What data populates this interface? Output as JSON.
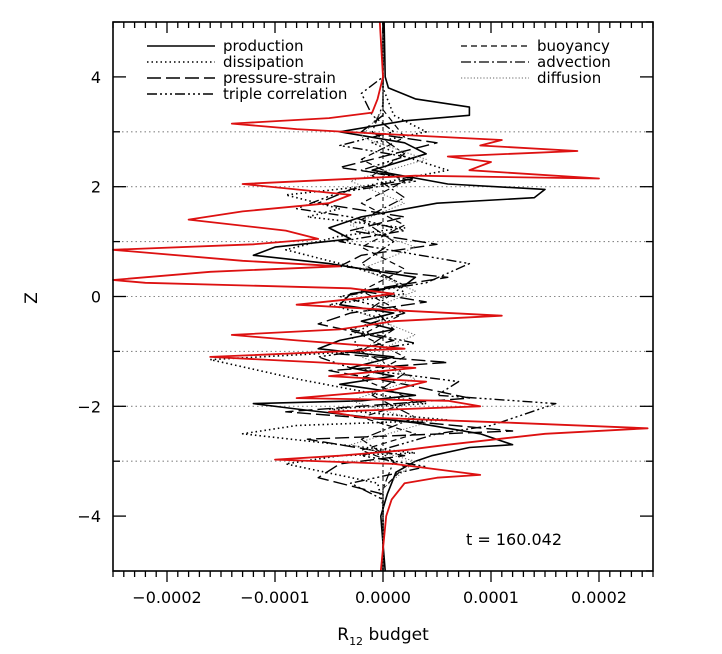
{
  "chart_data": {
    "type": "line",
    "title": "",
    "xlabel_main": "R",
    "xlabel_sub": "12",
    "xlabel_rest": " budget",
    "ylabel": "Z",
    "annotation": "t = 160.042",
    "xlim": [
      -0.00025,
      0.00025
    ],
    "ylim": [
      -5,
      5
    ],
    "x_ticks": [
      {
        "value": -0.0002,
        "label": "−0.0002"
      },
      {
        "value": -0.0001,
        "label": "−0.0001"
      },
      {
        "value": 0.0,
        "label": "0.0000"
      },
      {
        "value": 0.0001,
        "label": "0.0001"
      },
      {
        "value": 0.0002,
        "label": "0.0002"
      }
    ],
    "y_ticks": [
      {
        "value": -4,
        "label": "−4"
      },
      {
        "value": -2,
        "label": "−2"
      },
      {
        "value": 0,
        "label": "0"
      },
      {
        "value": 2,
        "label": "2"
      },
      {
        "value": 4,
        "label": "4"
      }
    ],
    "reference_lines_y": [
      -3,
      -2,
      -1,
      0,
      1,
      2,
      3
    ],
    "reference_line_x": 0.0,
    "legend_position": "top",
    "series": [
      {
        "name": "production",
        "color": "#000000",
        "dash": "none",
        "width": 1.6,
        "points": [
          [
            2e-06,
            -5.0
          ],
          [
            -2e-06,
            -4.0
          ],
          [
            4e-06,
            -3.6
          ],
          [
            1.2e-05,
            -3.2
          ],
          [
            3e-05,
            -3.0
          ],
          [
            4.5e-05,
            -2.9
          ],
          [
            8e-05,
            -2.75
          ],
          [
            0.00012,
            -2.7
          ],
          [
            9e-05,
            -2.5
          ],
          [
            3e-05,
            -2.3
          ],
          [
            -8e-05,
            -2.05
          ],
          [
            -0.00012,
            -1.95
          ],
          [
            -2e-05,
            -1.9
          ],
          [
            3e-05,
            -1.8
          ],
          [
            -4e-05,
            -1.6
          ],
          [
            1e-05,
            -1.45
          ],
          [
            -3e-05,
            -1.3
          ],
          [
            1e-05,
            -1.1
          ],
          [
            -6e-05,
            -0.95
          ],
          [
            -4e-05,
            -0.8
          ],
          [
            1e-05,
            -0.6
          ],
          [
            -2e-05,
            -0.45
          ],
          [
            1e-05,
            -0.3
          ],
          [
            -4e-05,
            -0.15
          ],
          [
            -3e-05,
            0.05
          ],
          [
            2e-05,
            0.2
          ],
          [
            3e-05,
            0.35
          ],
          [
            -5e-05,
            0.6
          ],
          [
            -0.00012,
            0.75
          ],
          [
            -0.0001,
            0.9
          ],
          [
            -3e-05,
            1.05
          ],
          [
            -5e-05,
            1.25
          ],
          [
            -2e-05,
            1.45
          ],
          [
            5e-05,
            1.7
          ],
          [
            0.00014,
            1.8
          ],
          [
            0.00015,
            1.95
          ],
          [
            6e-05,
            2.05
          ],
          [
            -1e-05,
            2.3
          ],
          [
            4e-05,
            2.6
          ],
          [
            2e-05,
            2.8
          ],
          [
            -4e-05,
            3.0
          ],
          [
            2e-05,
            3.2
          ],
          [
            8e-05,
            3.3
          ],
          [
            8e-05,
            3.45
          ],
          [
            3e-05,
            3.6
          ],
          [
            5e-06,
            3.8
          ],
          [
            2e-06,
            4.0
          ],
          [
            1e-06,
            5.0
          ]
        ]
      },
      {
        "name": "dissipation",
        "color": "#000000",
        "dash": "1.5 3",
        "width": 1.6,
        "points": [
          [
            0.0,
            -5.0
          ],
          [
            0.0,
            -3.8
          ],
          [
            -5e-06,
            -3.4
          ],
          [
            -9e-05,
            -3.05
          ],
          [
            -4e-05,
            -2.9
          ],
          [
            3e-05,
            -2.85
          ],
          [
            -0.00013,
            -2.5
          ],
          [
            -8e-05,
            -2.35
          ],
          [
            6e-05,
            -2.25
          ],
          [
            -5e-05,
            -2.05
          ],
          [
            4e-05,
            -1.95
          ],
          [
            -8e-05,
            -1.5
          ],
          [
            -0.00016,
            -1.15
          ],
          [
            -2e-05,
            -1.0
          ],
          [
            -3e-05,
            -0.7
          ],
          [
            0.0,
            -0.4
          ],
          [
            -5e-05,
            -0.15
          ],
          [
            2e-05,
            0.05
          ],
          [
            1e-05,
            0.3
          ],
          [
            -3e-05,
            0.55
          ],
          [
            -9e-05,
            0.85
          ],
          [
            -4e-05,
            1.1
          ],
          [
            2e-05,
            1.25
          ],
          [
            -7e-05,
            1.45
          ],
          [
            -4e-05,
            1.6
          ],
          [
            -9e-05,
            1.85
          ],
          [
            -2e-05,
            2.0
          ],
          [
            6e-05,
            2.3
          ],
          [
            2e-05,
            2.55
          ],
          [
            -1e-05,
            2.8
          ],
          [
            4e-05,
            3.0
          ],
          [
            1e-05,
            3.3
          ],
          [
            0.0,
            3.8
          ],
          [
            0.0,
            5.0
          ]
        ]
      },
      {
        "name": "pressure-strain",
        "color": "#000000",
        "dash": "14 5",
        "width": 1.4,
        "points": [
          [
            0.0,
            -5.0
          ],
          [
            0.0,
            -3.6
          ],
          [
            -6e-05,
            -3.3
          ],
          [
            -4e-05,
            -3.05
          ],
          [
            2e-05,
            -2.9
          ],
          [
            -7e-05,
            -2.6
          ],
          [
            0.00012,
            -2.45
          ],
          [
            4e-05,
            -2.3
          ],
          [
            -9e-05,
            -2.1
          ],
          [
            8e-05,
            -1.85
          ],
          [
            2e-05,
            -1.6
          ],
          [
            -5e-05,
            -1.35
          ],
          [
            6e-05,
            -1.2
          ],
          [
            -4e-05,
            -1.05
          ],
          [
            1e-05,
            -0.8
          ],
          [
            -6e-05,
            -0.5
          ],
          [
            -3e-05,
            -0.3
          ],
          [
            4e-05,
            -0.1
          ],
          [
            -2e-05,
            0.1
          ],
          [
            6e-05,
            0.35
          ],
          [
            -4e-05,
            0.55
          ],
          [
            -2e-05,
            0.75
          ],
          [
            5e-05,
            0.95
          ],
          [
            -3e-05,
            1.2
          ],
          [
            2e-05,
            1.45
          ],
          [
            -6e-05,
            1.7
          ],
          [
            -3e-05,
            1.95
          ],
          [
            3e-05,
            2.15
          ],
          [
            -4e-05,
            2.35
          ],
          [
            1e-05,
            2.6
          ],
          [
            5e-05,
            2.8
          ],
          [
            -2e-05,
            3.0
          ],
          [
            0.0,
            3.3
          ],
          [
            0.0,
            5.0
          ]
        ]
      },
      {
        "name": "triple correlation",
        "color": "#000000",
        "dash": "10 3 2 3 2 3 2 3",
        "width": 1.4,
        "points": [
          [
            0.0,
            -5.0
          ],
          [
            0.0,
            -3.7
          ],
          [
            -3e-05,
            -3.4
          ],
          [
            4e-05,
            -3.1
          ],
          [
            -2e-05,
            -2.9
          ],
          [
            5e-05,
            -2.5
          ],
          [
            0.0001,
            -2.35
          ],
          [
            0.00016,
            -1.95
          ],
          [
            5e-05,
            -1.8
          ],
          [
            7e-05,
            -1.55
          ],
          [
            -3e-05,
            -1.3
          ],
          [
            -6e-05,
            -1.1
          ],
          [
            3e-05,
            -0.85
          ],
          [
            -3e-05,
            -0.6
          ],
          [
            2e-05,
            -0.3
          ],
          [
            -4e-05,
            0.0
          ],
          [
            4e-05,
            0.25
          ],
          [
            8e-05,
            0.6
          ],
          [
            2e-05,
            0.8
          ],
          [
            -4e-05,
            1.0
          ],
          [
            2e-05,
            1.2
          ],
          [
            -3e-05,
            1.45
          ],
          [
            -8e-05,
            1.6
          ],
          [
            -4e-05,
            1.9
          ],
          [
            3e-05,
            2.1
          ],
          [
            -2e-05,
            2.3
          ],
          [
            2e-05,
            2.55
          ],
          [
            -4e-05,
            2.75
          ],
          [
            1e-05,
            3.0
          ],
          [
            -1e-05,
            3.3
          ],
          [
            -2e-05,
            3.7
          ],
          [
            0.0,
            4.0
          ],
          [
            0.0,
            5.0
          ]
        ]
      },
      {
        "name": "buoyancy",
        "color": "#000000",
        "dash": "6 4",
        "width": 1.2,
        "points": [
          [
            0.0,
            -5.0
          ],
          [
            0.0,
            -3.5
          ],
          [
            2e-05,
            -3.1
          ],
          [
            -2e-05,
            -2.8
          ],
          [
            3e-05,
            -2.5
          ],
          [
            -2e-05,
            -2.2
          ],
          [
            3e-05,
            -1.9
          ],
          [
            -2e-05,
            -1.5
          ],
          [
            2e-05,
            -1.1
          ],
          [
            -2e-05,
            -0.7
          ],
          [
            2e-05,
            -0.3
          ],
          [
            -2e-05,
            0.1
          ],
          [
            2e-05,
            0.5
          ],
          [
            -2e-05,
            0.9
          ],
          [
            2e-05,
            1.3
          ],
          [
            -2e-05,
            1.7
          ],
          [
            2e-05,
            2.1
          ],
          [
            -2e-05,
            2.5
          ],
          [
            2e-05,
            2.9
          ],
          [
            0.0,
            3.4
          ],
          [
            0.0,
            5.0
          ]
        ]
      },
      {
        "name": "advection",
        "color": "#000000",
        "dash": "10 3 2 3",
        "width": 1.2,
        "points": [
          [
            0.0,
            -5.0
          ],
          [
            0.0,
            -3.5
          ],
          [
            1e-05,
            -3.0
          ],
          [
            -2e-05,
            -2.6
          ],
          [
            3e-05,
            -2.2
          ],
          [
            -1e-05,
            -1.8
          ],
          [
            2e-05,
            -1.4
          ],
          [
            -2e-05,
            -1.0
          ],
          [
            1e-05,
            -0.6
          ],
          [
            -1e-05,
            -0.2
          ],
          [
            2e-05,
            0.2
          ],
          [
            -2e-05,
            0.6
          ],
          [
            1e-05,
            1.0
          ],
          [
            -2e-05,
            1.4
          ],
          [
            2e-05,
            1.8
          ],
          [
            -1e-05,
            2.2
          ],
          [
            2e-05,
            2.6
          ],
          [
            -1e-05,
            3.0
          ],
          [
            0.0,
            3.5
          ],
          [
            0.0,
            5.0
          ]
        ]
      },
      {
        "name": "diffusion",
        "color": "#666666",
        "dash": "1.2 2",
        "width": 1.0,
        "points": [
          [
            0.0,
            -5.0
          ],
          [
            0.0,
            -3.5
          ],
          [
            3e-05,
            -3.0
          ],
          [
            -3e-05,
            -2.7
          ],
          [
            4e-05,
            -2.3
          ],
          [
            -3e-05,
            -1.9
          ],
          [
            3e-05,
            -1.5
          ],
          [
            -2e-05,
            -1.1
          ],
          [
            3e-05,
            -0.7
          ],
          [
            -2e-05,
            -0.3
          ],
          [
            3e-05,
            0.1
          ],
          [
            -2e-05,
            0.5
          ],
          [
            3e-05,
            0.9
          ],
          [
            -3e-05,
            1.3
          ],
          [
            2e-05,
            1.7
          ],
          [
            -3e-05,
            2.1
          ],
          [
            4e-05,
            2.5
          ],
          [
            -2e-05,
            2.9
          ],
          [
            0.0,
            3.4
          ],
          [
            0.0,
            5.0
          ]
        ]
      },
      {
        "name": "",
        "color": "#dd1111",
        "dash": "none",
        "width": 1.8,
        "points": [
          [
            -2e-06,
            -5.0
          ],
          [
            3e-06,
            -4.0
          ],
          [
            8e-06,
            -3.7
          ],
          [
            2e-05,
            -3.4
          ],
          [
            5e-05,
            -3.3
          ],
          [
            9e-05,
            -3.25
          ],
          [
            5e-05,
            -3.15
          ],
          [
            1e-05,
            -3.05
          ],
          [
            -0.0001,
            -2.97
          ],
          [
            -4e-05,
            -2.9
          ],
          [
            2e-05,
            -2.8
          ],
          [
            6e-05,
            -2.7
          ],
          [
            0.00015,
            -2.5
          ],
          [
            0.000245,
            -2.4
          ],
          [
            0.00012,
            -2.3
          ],
          [
            -2e-05,
            -2.2
          ],
          [
            -5e-05,
            -2.1
          ],
          [
            9e-05,
            -2.0
          ],
          [
            6e-05,
            -1.9
          ],
          [
            -8e-05,
            -1.85
          ],
          [
            1e-05,
            -1.7
          ],
          [
            4e-05,
            -1.55
          ],
          [
            -5e-05,
            -1.45
          ],
          [
            3e-05,
            -1.3
          ],
          [
            -6e-05,
            -1.2
          ],
          [
            -0.00016,
            -1.1
          ],
          [
            -4e-05,
            -1.0
          ],
          [
            2e-05,
            -0.95
          ],
          [
            -8e-05,
            -0.8
          ],
          [
            -0.00014,
            -0.7
          ],
          [
            -4e-05,
            -0.6
          ],
          [
            1e-05,
            -0.45
          ],
          [
            0.00011,
            -0.35
          ],
          [
            1e-05,
            -0.25
          ],
          [
            -8e-05,
            -0.15
          ],
          [
            -3e-05,
            -0.05
          ],
          [
            1e-05,
            0.05
          ],
          [
            -3e-05,
            0.15
          ],
          [
            -0.00022,
            0.25
          ],
          [
            -0.00025,
            0.3
          ],
          [
            -0.00016,
            0.45
          ],
          [
            -4e-05,
            0.55
          ],
          [
            -0.00013,
            0.65
          ],
          [
            -0.00025,
            0.85
          ],
          [
            -0.00012,
            0.95
          ],
          [
            -6e-05,
            1.05
          ],
          [
            -9e-05,
            1.2
          ],
          [
            -0.00018,
            1.4
          ],
          [
            -0.00013,
            1.55
          ],
          [
            -5e-05,
            1.7
          ],
          [
            -3e-05,
            1.85
          ],
          [
            -0.00013,
            2.05
          ],
          [
            3e-05,
            2.2
          ],
          [
            0.0002,
            2.15
          ],
          [
            8e-05,
            2.3
          ],
          [
            0.0001,
            2.45
          ],
          [
            6e-05,
            2.55
          ],
          [
            0.00018,
            2.65
          ],
          [
            9e-05,
            2.75
          ],
          [
            0.00011,
            2.85
          ],
          [
            1e-05,
            2.95
          ],
          [
            -8e-05,
            3.05
          ],
          [
            -0.00014,
            3.15
          ],
          [
            -5e-05,
            3.25
          ],
          [
            -1e-05,
            3.35
          ],
          [
            -5e-06,
            3.6
          ],
          [
            0.0,
            4.0
          ],
          [
            -3e-06,
            5.0
          ]
        ]
      }
    ]
  }
}
